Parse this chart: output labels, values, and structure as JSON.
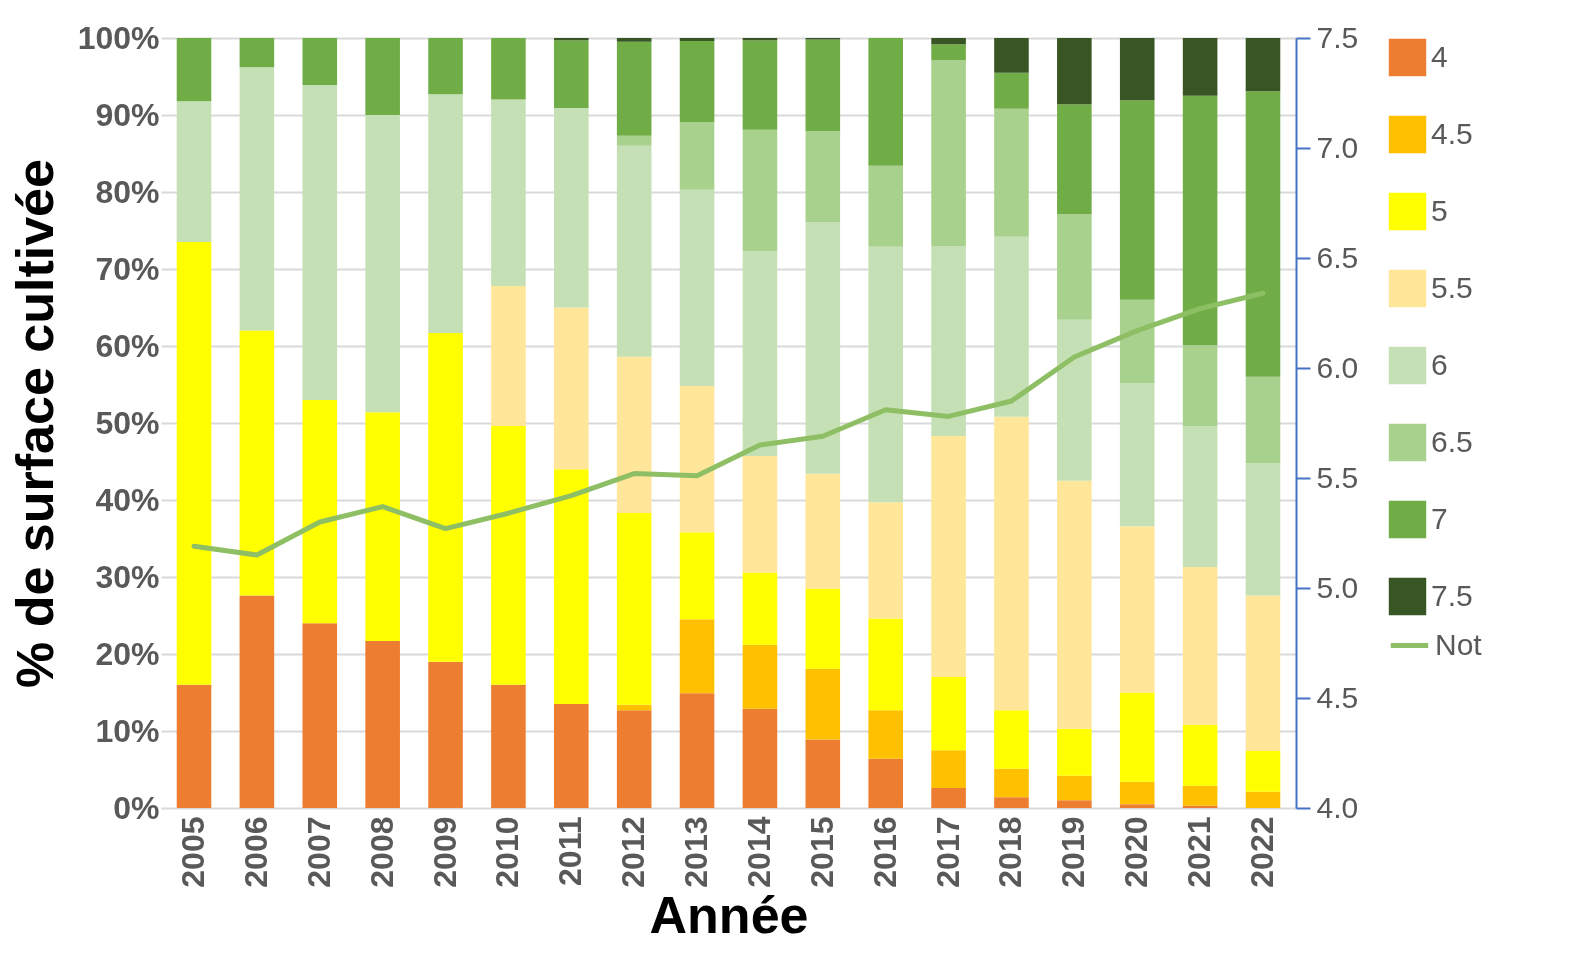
{
  "chart_data": {
    "type": "bar",
    "stacked": true,
    "xlabel": "Année",
    "ylabel": "% de surface cultivée",
    "categories": [
      "2005",
      "2006",
      "2007",
      "2008",
      "2009",
      "2010",
      "2011",
      "2012",
      "2013",
      "2014",
      "2015",
      "2016",
      "2017",
      "2018",
      "2019",
      "2020",
      "2021",
      "2022"
    ],
    "ylim": [
      0,
      100
    ],
    "yticks": [
      {
        "value": 0,
        "label": "0%"
      },
      {
        "value": 10,
        "label": "10%"
      },
      {
        "value": 20,
        "label": "20%"
      },
      {
        "value": 30,
        "label": "30%"
      },
      {
        "value": 40,
        "label": "40%"
      },
      {
        "value": 50,
        "label": "50%"
      },
      {
        "value": 60,
        "label": "60%"
      },
      {
        "value": 70,
        "label": "70%"
      },
      {
        "value": 80,
        "label": "80%"
      },
      {
        "value": 90,
        "label": "90%"
      },
      {
        "value": 100,
        "label": "100%"
      }
    ],
    "y2lim": [
      4.0,
      7.5
    ],
    "y2ticks": [
      {
        "value": 4,
        "label": "4.0"
      },
      4.5,
      {
        "value": 5,
        "label": "5.0"
      },
      5.5,
      {
        "value": 6,
        "label": "6.0"
      },
      6.5,
      {
        "value": 7,
        "label": "7.0"
      },
      7.5
    ],
    "grid": "y",
    "legend": "right",
    "series": [
      {
        "name": "4",
        "color": "#ed7d31",
        "values": [
          16,
          27.6,
          24,
          21.7,
          19,
          16,
          13.5,
          12.7,
          14.9,
          12.9,
          8.9,
          6.4,
          2.6,
          1.4,
          1.0,
          0.5,
          0.3,
          0
        ]
      },
      {
        "name": "4.5",
        "color": "#ffc000",
        "values": [
          0,
          0,
          0,
          0,
          0,
          0,
          0,
          0.7,
          9.6,
          8.3,
          9.2,
          6.3,
          4.9,
          3.7,
          3.2,
          2.9,
          2.6,
          2.1
        ]
      },
      {
        "name": "5",
        "color": "#ffff00",
        "values": [
          57.5,
          34.4,
          29,
          29.7,
          42.7,
          33.6,
          30.5,
          24.9,
          11.3,
          9.4,
          10.4,
          11.9,
          9.5,
          7.6,
          6.1,
          11.6,
          7.9,
          5.3
        ]
      },
      {
        "name": "5.5",
        "color": "#ffe699",
        "values": [
          0,
          0,
          0,
          0,
          0,
          18.2,
          21,
          20.3,
          19.0,
          15.1,
          14.9,
          15.1,
          31.3,
          38.1,
          32.2,
          21.6,
          20.5,
          20.2
        ]
      },
      {
        "name": "6",
        "color": "#c5e0b4",
        "values": [
          18.3,
          34.2,
          40.9,
          38.6,
          31,
          24.2,
          25.9,
          27.4,
          25.5,
          26.6,
          32.7,
          33.2,
          24.7,
          23.4,
          20.9,
          18.6,
          18.3,
          17.2
        ]
      },
      {
        "name": "6.5",
        "color": "#a9d18e",
        "values": [
          0,
          0,
          0,
          0,
          0,
          0,
          0,
          1.3,
          8.8,
          15.8,
          11.8,
          10.5,
          24.1,
          16.6,
          13.7,
          10.8,
          10.5,
          11.2
        ]
      },
      {
        "name": "7",
        "color": "#70ad47",
        "values": [
          8.2,
          3.8,
          6.1,
          10,
          7.3,
          8,
          8.8,
          12.2,
          10.5,
          11.6,
          11.9,
          16.6,
          2.1,
          4.7,
          14.3,
          25.9,
          32.4,
          37.1
        ]
      },
      {
        "name": "7.5",
        "color": "#375623",
        "values": [
          0,
          0,
          0,
          0,
          0,
          0,
          0.3,
          0.5,
          0.4,
          0.3,
          0.2,
          0,
          0.8,
          4.5,
          8.6,
          8.1,
          7.5,
          6.9
        ]
      },
      {
        "name": "Not",
        "color": "#8fbf65",
        "type": "line",
        "axis": "y2",
        "values": [
          5.19,
          5.15,
          5.3,
          5.37,
          5.27,
          5.34,
          5.42,
          5.52,
          5.51,
          5.65,
          5.69,
          5.81,
          5.78,
          5.85,
          6.05,
          6.17,
          6.27,
          6.34
        ]
      }
    ]
  }
}
